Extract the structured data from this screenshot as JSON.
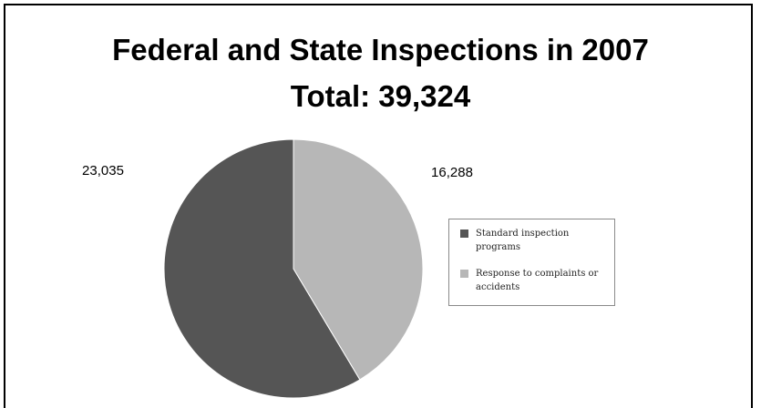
{
  "chart_data": {
    "type": "pie",
    "title": "Federal and State Inspections in 2007",
    "subtitle": "Total: 39,324",
    "categories": [
      "Standard inspection programs",
      "Response to complaints or accidents"
    ],
    "values": [
      23035,
      16288
    ],
    "value_labels": [
      "23,035",
      "16,288"
    ],
    "colors": [
      "#555555",
      "#b7b7b7"
    ],
    "legend": {
      "position": "right",
      "entries": [
        "Standard inspection programs",
        "Response to complaints or accidents"
      ]
    }
  }
}
